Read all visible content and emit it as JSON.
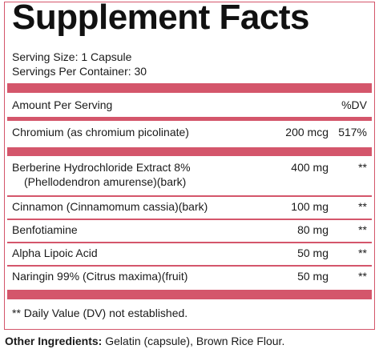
{
  "title": "Supplement Facts",
  "serving_size": "Serving Size: 1 Capsule",
  "servings_per_container": "Servings Per Container: 30",
  "header": {
    "amount_label": "Amount Per Serving",
    "dv_label": "%DV"
  },
  "rows": [
    {
      "name": "Chromium (as chromium picolinate)",
      "sub": "",
      "amount": "200 mcg",
      "dv": "517%"
    },
    {
      "name": "Berberine Hydrochloride Extract 8%",
      "sub": "(Phellodendron amurense)(bark)",
      "amount": "400 mg",
      "dv": "**"
    },
    {
      "name": "Cinnamon (Cinnamomum cassia)(bark)",
      "sub": "",
      "amount": "100 mg",
      "dv": "**"
    },
    {
      "name": "Benfotiamine",
      "sub": "",
      "amount": "80 mg",
      "dv": "**"
    },
    {
      "name": "Alpha Lipoic Acid",
      "sub": "",
      "amount": "50 mg",
      "dv": "**"
    },
    {
      "name": "Naringin 99% (Citrus maxima)(fruit)",
      "sub": "",
      "amount": "50 mg",
      "dv": "**"
    }
  ],
  "footnote": "** Daily Value (DV) not established.",
  "other_ingredients": {
    "label": "Other Ingredients:",
    "value": " Gelatin (capsule), Brown Rice Flour."
  },
  "colors": {
    "accent": "#d4566b",
    "text": "#1a1a1a"
  }
}
